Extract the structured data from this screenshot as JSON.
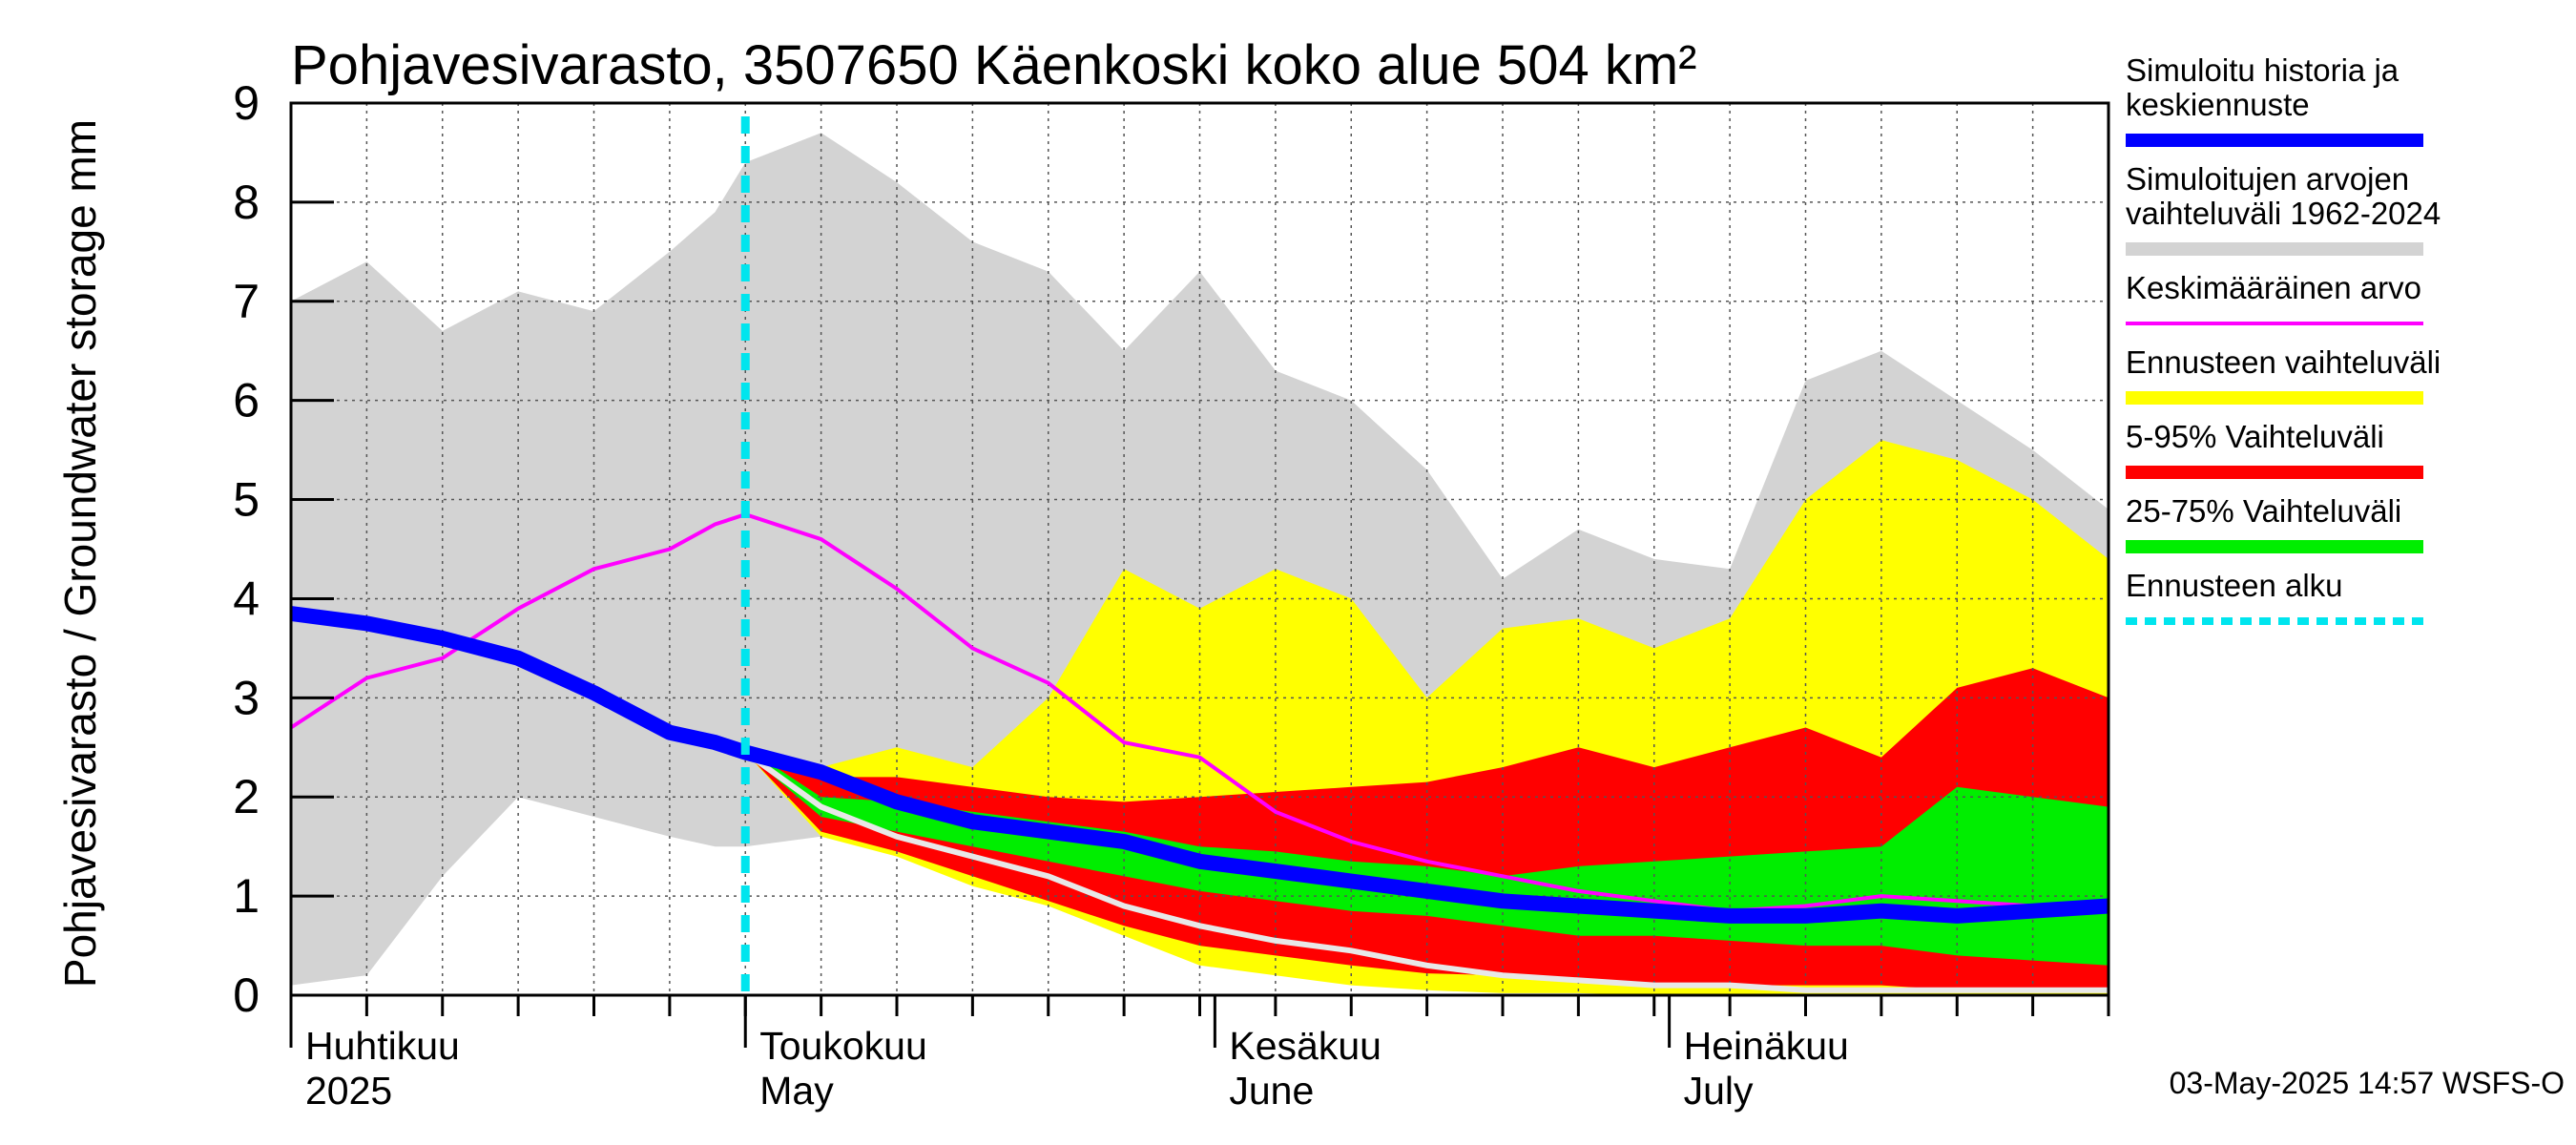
{
  "chart_data": {
    "type": "area",
    "title": "Pohjavesivarasto, 3507650 Käenkoski koko alue 504 km²",
    "ylabel": "Pohjavesivarasto / Groundwater storage   mm",
    "ylim": [
      0,
      9
    ],
    "yticks": [
      "0",
      "1",
      "2",
      "3",
      "4",
      "5",
      "6",
      "7",
      "8",
      "9"
    ],
    "xlim_days": [
      0,
      120
    ],
    "forecast_start_day": 30,
    "month_labels": [
      {
        "day": 0,
        "fi": "Huhtikuu",
        "en": "2025"
      },
      {
        "day": 30,
        "fi": "Toukokuu",
        "en": "May"
      },
      {
        "day": 61,
        "fi": "Kesäkuu",
        "en": "June"
      },
      {
        "day": 91,
        "fi": "Heinäkuu",
        "en": "July"
      }
    ],
    "x": [
      0,
      5,
      10,
      15,
      20,
      25,
      28,
      30,
      35,
      40,
      45,
      50,
      55,
      60,
      65,
      70,
      75,
      80,
      85,
      90,
      95,
      100,
      105,
      110,
      115,
      120
    ],
    "history_range": {
      "low": [
        0.1,
        0.2,
        1.2,
        2.0,
        1.8,
        1.6,
        1.5,
        1.5,
        1.6,
        1.5,
        1.2,
        0.9,
        0.6,
        0.4,
        0.3,
        0.2,
        0.15,
        0.1,
        0.1,
        0.1,
        0.1,
        0.1,
        0.1,
        0.05,
        0.05,
        0.05
      ],
      "high": [
        7.0,
        7.4,
        6.7,
        7.1,
        6.9,
        7.5,
        7.9,
        8.4,
        8.7,
        8.2,
        7.6,
        7.3,
        6.5,
        7.3,
        6.3,
        6.0,
        5.3,
        4.2,
        4.7,
        4.4,
        4.3,
        6.2,
        6.5,
        6.0,
        5.5,
        4.9
      ]
    },
    "forecast_range": {
      "low": [
        null,
        null,
        null,
        null,
        null,
        null,
        null,
        2.45,
        1.6,
        1.4,
        1.1,
        0.9,
        0.6,
        0.3,
        0.2,
        0.1,
        0.05,
        0.02,
        0.02,
        0.0,
        0.0,
        0.0,
        0.0,
        0.0,
        0.0,
        0.0
      ],
      "high": [
        null,
        null,
        null,
        null,
        null,
        null,
        null,
        2.5,
        2.3,
        2.5,
        2.3,
        3.0,
        4.3,
        3.9,
        4.3,
        4.0,
        3.0,
        3.7,
        3.8,
        3.5,
        3.8,
        5.0,
        5.6,
        5.4,
        5.0,
        4.4
      ]
    },
    "p5_95": {
      "low": [
        null,
        null,
        null,
        null,
        null,
        null,
        null,
        2.45,
        1.65,
        1.45,
        1.2,
        0.95,
        0.7,
        0.5,
        0.4,
        0.3,
        0.22,
        0.2,
        0.15,
        0.12,
        0.1,
        0.1,
        0.1,
        0.05,
        0.05,
        0.05
      ],
      "high": [
        null,
        null,
        null,
        null,
        null,
        null,
        null,
        2.5,
        2.2,
        2.2,
        2.1,
        2.0,
        1.95,
        2.0,
        2.05,
        2.1,
        2.15,
        2.3,
        2.5,
        2.3,
        2.5,
        2.7,
        2.4,
        3.1,
        3.3,
        3.0
      ]
    },
    "p25_75": {
      "low": [
        null,
        null,
        null,
        null,
        null,
        null,
        null,
        2.45,
        1.8,
        1.65,
        1.5,
        1.35,
        1.2,
        1.05,
        0.95,
        0.85,
        0.8,
        0.7,
        0.6,
        0.6,
        0.55,
        0.5,
        0.5,
        0.4,
        0.35,
        0.3
      ]
    },
    "p25_75_high": [
      null,
      null,
      null,
      null,
      null,
      null,
      null,
      2.5,
      2.0,
      1.95,
      1.85,
      1.75,
      1.65,
      1.5,
      1.45,
      1.35,
      1.3,
      1.2,
      1.3,
      1.35,
      1.4,
      1.45,
      1.5,
      2.1,
      2.0,
      1.9
    ],
    "mean_line": [
      2.7,
      3.2,
      3.4,
      3.9,
      4.3,
      4.5,
      4.75,
      4.85,
      4.6,
      4.1,
      3.5,
      3.15,
      2.55,
      2.4,
      1.85,
      1.55,
      1.35,
      1.2,
      1.05,
      0.95,
      0.85,
      0.9,
      1.0,
      0.95,
      0.9,
      0.95
    ],
    "median_forecast": [
      3.85,
      3.75,
      3.6,
      3.4,
      3.05,
      2.65,
      2.55,
      2.45,
      2.25,
      1.95,
      1.75,
      1.65,
      1.55,
      1.35,
      1.25,
      1.15,
      1.05,
      0.95,
      0.9,
      0.85,
      0.8,
      0.8,
      0.85,
      0.8,
      0.85,
      0.9
    ],
    "white_line": [
      null,
      null,
      null,
      null,
      null,
      null,
      null,
      2.45,
      1.9,
      1.6,
      1.4,
      1.2,
      0.9,
      0.7,
      0.55,
      0.45,
      0.3,
      0.2,
      0.15,
      0.1,
      0.1,
      0.05,
      0.05,
      0.05,
      0.05,
      0.05
    ],
    "colors": {
      "history_range": "#d3d3d3",
      "forecast_range": "#ffff00",
      "p5_95": "#ff0000",
      "p25_75": "#00ee00",
      "mean_line": "#ff00ff",
      "median": "#0000ff",
      "forecast_start": "#00e5ee",
      "white_line": "#e8e8e8"
    },
    "legend": [
      {
        "label": "Simuloitu historia ja keskiennuste",
        "swatch": "median"
      },
      {
        "label": "Simuloitujen arvojen vaihteluväli 1962-2024",
        "swatch": "history_range"
      },
      {
        "label": "Keskimääräinen arvo",
        "swatch": "mean_line"
      },
      {
        "label": "Ennusteen vaihteluväli",
        "swatch": "forecast_range"
      },
      {
        "label": "5-95% Vaihteluväli",
        "swatch": "p5_95"
      },
      {
        "label": "25-75% Vaihteluväli",
        "swatch": "p25_75"
      },
      {
        "label": "Ennusteen alku",
        "swatch": "forecast_start"
      }
    ],
    "footer": "03-May-2025 14:57 WSFS-O"
  }
}
